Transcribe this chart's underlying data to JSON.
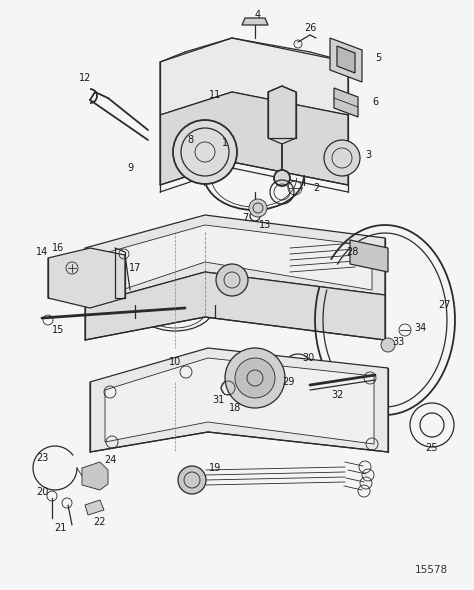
{
  "fig_id": "15578",
  "background_color": "#f5f5f5",
  "line_color": "#2a2a2a",
  "label_color": "#1a1a1a",
  "fig_width": 4.74,
  "fig_height": 5.9,
  "dpi": 100
}
